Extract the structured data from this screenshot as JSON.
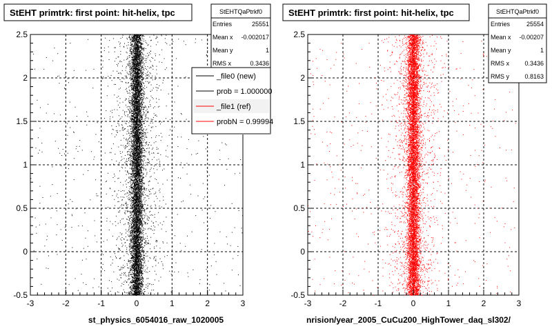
{
  "chart_data": [
    {
      "type": "scatter",
      "title": "StEHT primtrk: first point: hit-helix, tpc",
      "xlabel": "st_physics_6054016_raw_1020005",
      "ylabel": "",
      "xlim": [
        -3,
        3
      ],
      "ylim": [
        -0.5,
        2.5
      ],
      "xticks": [
        "-3",
        "-2",
        "-1",
        "0",
        "1",
        "2",
        "3"
      ],
      "yticks": [
        "-0.5",
        "0",
        "0.5",
        "1",
        "1.5",
        "2",
        "2.5"
      ],
      "grid": true,
      "series": [
        {
          "name": "_file0 (new)",
          "color": "#000000",
          "x_center": 0.0,
          "x_width_core": 0.25,
          "n_points": 25551
        }
      ],
      "stats": {
        "title": "StEHTQaPtrkf0",
        "rows": [
          {
            "label": "Entries",
            "value": "25551"
          },
          {
            "label": "Mean x",
            "value": "-0.002017"
          },
          {
            "label": "Mean y",
            "value": "1"
          },
          {
            "label": "RMS x",
            "value": "0.3436"
          }
        ]
      },
      "legend": {
        "placement": "top-right",
        "entries": [
          {
            "label": "_file0 (new)",
            "color": "#000000"
          },
          {
            "label": "prob = 1.000000",
            "color": "#000000"
          },
          {
            "label": "_file1 (ref)",
            "color": "#ff0000"
          },
          {
            "label": "probN = 0.99994",
            "color": "#ff0000"
          }
        ]
      }
    },
    {
      "type": "scatter",
      "title": "StEHT primtrk: first point: hit-helix, tpc",
      "xlabel": "nrision/year_2005_CuCu200_HighTower_daq_sl302/",
      "ylabel": "",
      "xlim": [
        -3,
        3
      ],
      "ylim": [
        -0.5,
        2.5
      ],
      "xticks": [
        "-3",
        "-2",
        "-1",
        "0",
        "1",
        "2",
        "3"
      ],
      "yticks": [
        "-0.5",
        "0",
        "0.5",
        "1",
        "1.5",
        "2",
        "2.5"
      ],
      "grid": true,
      "series": [
        {
          "name": "_file1 (ref)",
          "color": "#ff0000",
          "x_center": 0.0,
          "x_width_core": 0.25,
          "n_points": 25554
        }
      ],
      "stats": {
        "title": "StEHTQaPtrkf0",
        "rows": [
          {
            "label": "Entries",
            "value": "25554"
          },
          {
            "label": "Mean x",
            "value": "-0.00207"
          },
          {
            "label": "Mean y",
            "value": "1"
          },
          {
            "label": "RMS x",
            "value": "0.3436"
          },
          {
            "label": "RMS y",
            "value": "0.8163"
          }
        ]
      }
    }
  ]
}
